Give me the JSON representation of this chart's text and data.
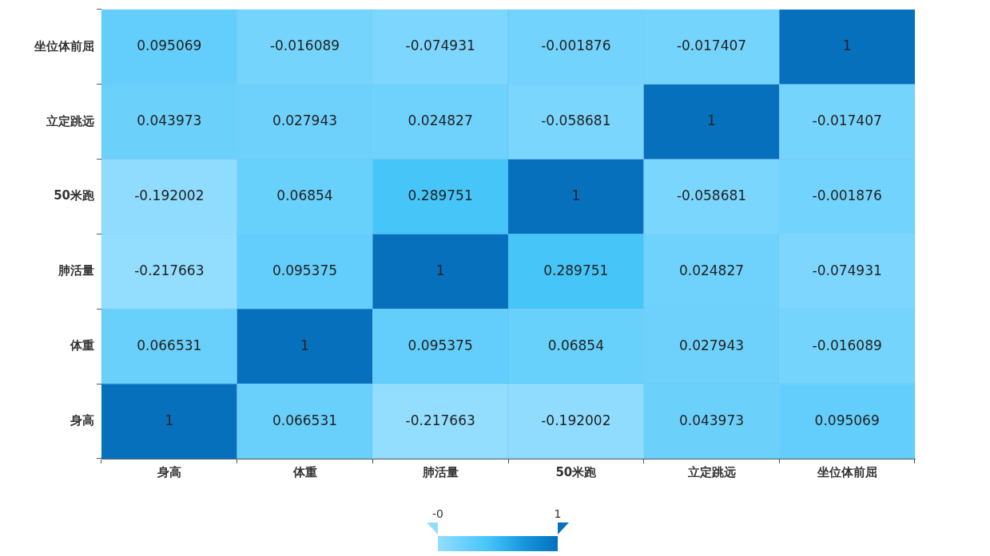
{
  "chart_data": {
    "type": "heatmap",
    "categories": [
      "身高",
      "体重",
      "肺活量",
      "50米跑",
      "立定跳远",
      "坐位体前屈"
    ],
    "y_categories": [
      "坐位体前屈",
      "立定跳远",
      "50米跑",
      "肺活量",
      "体重",
      "身高"
    ],
    "cells": [
      [
        0.095069,
        -0.016089,
        -0.074931,
        -0.001876,
        -0.017407,
        1
      ],
      [
        0.043973,
        0.027943,
        0.024827,
        -0.058681,
        1,
        -0.017407
      ],
      [
        -0.192002,
        0.06854,
        0.289751,
        1,
        -0.058681,
        -0.001876
      ],
      [
        -0.217663,
        0.095375,
        1,
        0.289751,
        0.024827,
        -0.074931
      ],
      [
        0.066531,
        1,
        0.095375,
        0.06854,
        0.027943,
        -0.016089
      ],
      [
        1,
        0.066531,
        -0.217663,
        -0.192002,
        0.043973,
        0.095069
      ]
    ],
    "clim": [
      -0.217663,
      1
    ],
    "cticks": [
      {
        "value": -0.217663,
        "label": "-0"
      },
      1
    ],
    "data_labels": true
  }
}
